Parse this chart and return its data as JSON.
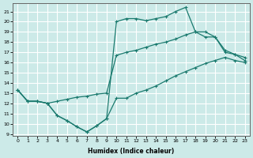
{
  "xlabel": "Humidex (Indice chaleur)",
  "xlim": [
    -0.5,
    23.5
  ],
  "ylim": [
    8.8,
    21.8
  ],
  "yticks": [
    9,
    10,
    11,
    12,
    13,
    14,
    15,
    16,
    17,
    18,
    19,
    20,
    21
  ],
  "xticks": [
    0,
    1,
    2,
    3,
    4,
    5,
    6,
    7,
    8,
    9,
    10,
    11,
    12,
    13,
    14,
    15,
    16,
    17,
    18,
    19,
    20,
    21,
    22,
    23
  ],
  "line_color": "#1a7a6e",
  "bg_color": "#cceae8",
  "grid_color": "#ffffff",
  "line1_x": [
    0,
    1,
    2,
    3,
    4,
    5,
    6,
    7,
    8,
    9,
    10,
    11,
    12,
    13,
    14,
    15,
    16,
    17,
    18,
    19,
    20,
    21,
    22,
    23
  ],
  "line1_y": [
    13.3,
    12.2,
    12.2,
    12.0,
    10.8,
    10.3,
    9.7,
    9.2,
    9.8,
    10.5,
    12.5,
    12.5,
    13.0,
    13.3,
    13.7,
    14.2,
    14.7,
    15.1,
    15.5,
    15.9,
    16.2,
    16.5,
    16.2,
    16.0
  ],
  "line2_x": [
    0,
    1,
    2,
    3,
    4,
    5,
    6,
    7,
    8,
    9,
    10,
    11,
    12,
    13,
    14,
    15,
    16,
    17,
    18,
    19,
    20,
    21,
    22,
    23
  ],
  "line2_y": [
    13.3,
    12.2,
    12.2,
    12.0,
    10.8,
    10.3,
    9.7,
    9.2,
    9.8,
    10.5,
    20.0,
    20.3,
    20.3,
    20.1,
    20.3,
    20.5,
    21.0,
    21.4,
    19.0,
    18.5,
    18.5,
    17.0,
    16.8,
    16.2
  ],
  "line3_x": [
    0,
    1,
    2,
    3,
    4,
    5,
    6,
    7,
    8,
    9,
    10,
    11,
    12,
    13,
    14,
    15,
    16,
    17,
    18,
    19,
    20,
    21,
    22,
    23
  ],
  "line3_y": [
    13.3,
    12.2,
    12.2,
    12.0,
    12.2,
    12.4,
    12.6,
    12.7,
    12.9,
    13.0,
    16.7,
    17.0,
    17.2,
    17.5,
    17.8,
    18.0,
    18.3,
    18.7,
    19.0,
    19.0,
    18.5,
    17.2,
    16.8,
    16.5
  ]
}
